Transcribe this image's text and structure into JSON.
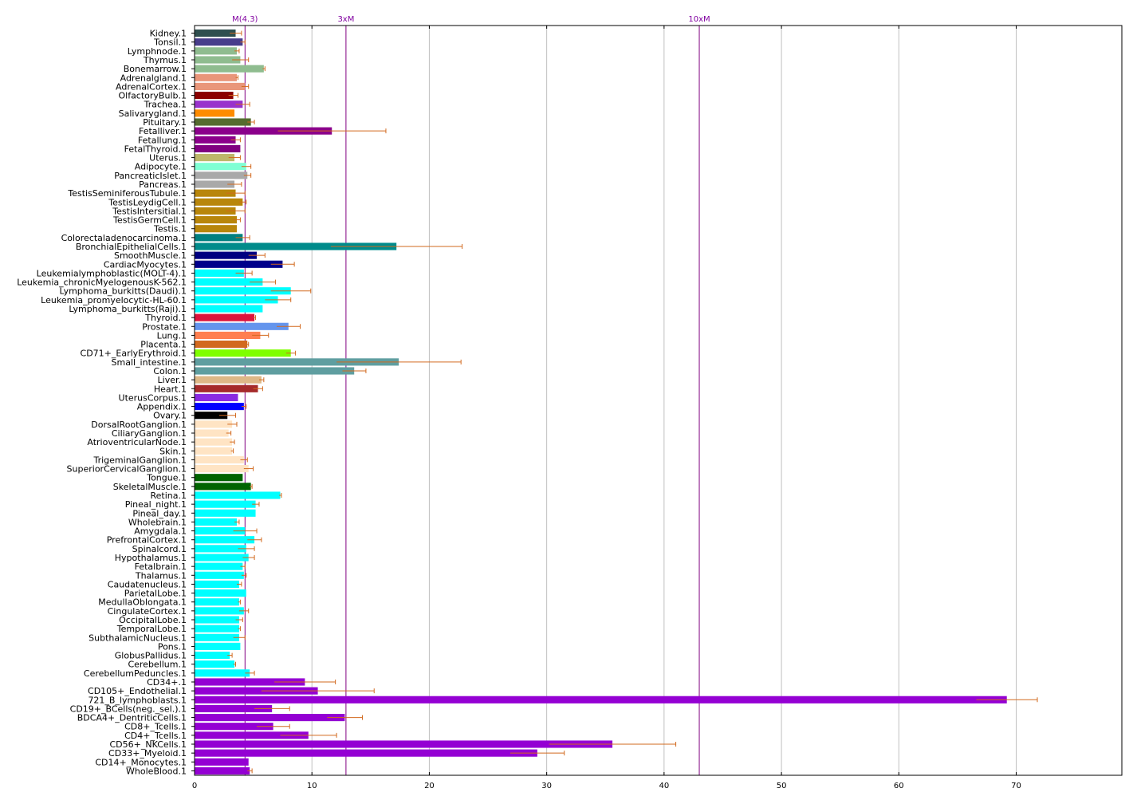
{
  "chart_data": {
    "type": "bar",
    "orientation": "horizontal",
    "title": "",
    "xlabel": "",
    "ylabel": "",
    "xlim": [
      0,
      79
    ],
    "xticks": [
      0,
      10,
      20,
      30,
      40,
      50,
      60,
      70
    ],
    "grid": {
      "vertical": true,
      "horizontal": false
    },
    "legend": "none",
    "error_bar_color": "#d2691e",
    "reference_lines": [
      {
        "label": "M(4.3)",
        "value": 4.3,
        "color": "#800080"
      },
      {
        "label": "3xM",
        "value": 12.9,
        "color": "#800080"
      },
      {
        "label": "10xM",
        "value": 43.0,
        "color": "#800080"
      }
    ],
    "bars": [
      {
        "label": "Kidney.1",
        "value": 3.5,
        "error": 0.5,
        "color": "#2f4f4f"
      },
      {
        "label": "Tonsil.1",
        "value": 4.1,
        "error": 0.2,
        "color": "#483d8b"
      },
      {
        "label": "Lymphnode.1",
        "value": 3.6,
        "error": 0.2,
        "color": "#8fbc8f"
      },
      {
        "label": "Thymus.1",
        "value": 3.9,
        "error": 0.7,
        "color": "#8fbc8f"
      },
      {
        "label": "Bonemarrow.1",
        "value": 5.9,
        "error": 0.1,
        "color": "#8fbc8f"
      },
      {
        "label": "Adrenalgland.1",
        "value": 3.6,
        "error": 0.1,
        "color": "#e9967a"
      },
      {
        "label": "AdrenalCortex.1",
        "value": 4.3,
        "error": 0.3,
        "color": "#e9967a"
      },
      {
        "label": "OlfactoryBulb.1",
        "value": 3.3,
        "error": 0.4,
        "color": "#8b0000"
      },
      {
        "label": "Trachea.1",
        "value": 4.1,
        "error": 0.6,
        "color": "#9932cc"
      },
      {
        "label": "Salivarygland.1",
        "value": 3.4,
        "error": 0.0,
        "color": "#ff8c00"
      },
      {
        "label": "Pituitary.1",
        "value": 4.8,
        "error": 0.3,
        "color": "#556b2f"
      },
      {
        "label": "Fetalliver.1",
        "value": 11.7,
        "error": 4.6,
        "color": "#8b008b"
      },
      {
        "label": "Fetallung.1",
        "value": 3.5,
        "error": 0.4,
        "color": "#8b008b"
      },
      {
        "label": "FetalThyroid.1",
        "value": 3.9,
        "error": 0.0,
        "color": "#800080"
      },
      {
        "label": "Uterus.1",
        "value": 3.4,
        "error": 0.5,
        "color": "#bdb76b"
      },
      {
        "label": "Adipocyte.1",
        "value": 4.4,
        "error": 0.4,
        "color": "#7fffd4"
      },
      {
        "label": "PancreaticIslet.1",
        "value": 4.5,
        "error": 0.3,
        "color": "#a9a9a9"
      },
      {
        "label": "Pancreas.1",
        "value": 3.4,
        "error": 0.6,
        "color": "#a9a9a9"
      },
      {
        "label": "TestisSeminiferousTubule.1",
        "value": 3.5,
        "error": 0.8,
        "color": "#b8860b"
      },
      {
        "label": "TestisLeydigCell.1",
        "value": 4.1,
        "error": 0.3,
        "color": "#b8860b"
      },
      {
        "label": "TestisIntersitial.1",
        "value": 3.5,
        "error": 0.8,
        "color": "#b8860b"
      },
      {
        "label": "TestisGermCell.1",
        "value": 3.6,
        "error": 0.3,
        "color": "#b8860b"
      },
      {
        "label": "Testis.1",
        "value": 3.6,
        "error": 0.0,
        "color": "#b8860b"
      },
      {
        "label": "Colorectaladenocarcinoma.1",
        "value": 4.1,
        "error": 0.6,
        "color": "#008080"
      },
      {
        "label": "BronchialEpithelialCells.1",
        "value": 17.2,
        "error": 5.6,
        "color": "#008b8b"
      },
      {
        "label": "SmoothMuscle.1",
        "value": 5.3,
        "error": 0.7,
        "color": "#000080"
      },
      {
        "label": "CardiacMyocytes.1",
        "value": 7.5,
        "error": 1.0,
        "color": "#00008b"
      },
      {
        "label": "Leukemialymphoblastic(MOLT-4).1",
        "value": 4.2,
        "error": 0.7,
        "color": "#00ffff"
      },
      {
        "label": "Leukemia_chronicMyelogenousK-562.1",
        "value": 5.8,
        "error": 1.1,
        "color": "#00ffff"
      },
      {
        "label": "Lymphoma_burkitts(Daudi).1",
        "value": 8.2,
        "error": 1.7,
        "color": "#00ffff"
      },
      {
        "label": "Leukemia_promyelocytic-HL-60.1",
        "value": 7.1,
        "error": 1.1,
        "color": "#00ffff"
      },
      {
        "label": "Lymphoma_burkitts(Raji).1",
        "value": 5.8,
        "error": 0.0,
        "color": "#00ffff"
      },
      {
        "label": "Thyroid.1",
        "value": 5.1,
        "error": 0.1,
        "color": "#dc143c"
      },
      {
        "label": "Prostate.1",
        "value": 8.0,
        "error": 1.0,
        "color": "#6495ed"
      },
      {
        "label": "Lung.1",
        "value": 5.6,
        "error": 0.7,
        "color": "#ff7f50"
      },
      {
        "label": "Placenta.1",
        "value": 4.5,
        "error": 0.1,
        "color": "#d2691e"
      },
      {
        "label": "CD71+_EarlyErythroid.1",
        "value": 8.2,
        "error": 0.4,
        "color": "#7fff00"
      },
      {
        "label": "Small_intestine.1",
        "value": 17.4,
        "error": 5.3,
        "color": "#5f9ea0"
      },
      {
        "label": "Colon.1",
        "value": 13.6,
        "error": 1.0,
        "color": "#5f9ea0"
      },
      {
        "label": "Liver.1",
        "value": 5.7,
        "error": 0.2,
        "color": "#deb887"
      },
      {
        "label": "Heart.1",
        "value": 5.4,
        "error": 0.4,
        "color": "#a52a2a"
      },
      {
        "label": "UterusCorpus.1",
        "value": 3.7,
        "error": 0.0,
        "color": "#8a2be2"
      },
      {
        "label": "Appendix.1",
        "value": 4.2,
        "error": 0.2,
        "color": "#0000ff"
      },
      {
        "label": "Ovary.1",
        "value": 2.8,
        "error": 0.7,
        "color": "#000000"
      },
      {
        "label": "DorsalRootGanglion.1",
        "value": 3.2,
        "error": 0.4,
        "color": "#ffe4c4"
      },
      {
        "label": "CiliaryGanglion.1",
        "value": 2.9,
        "error": 0.2,
        "color": "#ffe4c4"
      },
      {
        "label": "AtrioventricularNode.1",
        "value": 3.2,
        "error": 0.2,
        "color": "#ffe4c4"
      },
      {
        "label": "Skin.1",
        "value": 3.2,
        "error": 0.1,
        "color": "#ffe4c4"
      },
      {
        "label": "TrigeminalGanglion.1",
        "value": 4.2,
        "error": 0.3,
        "color": "#ffe4c4"
      },
      {
        "label": "SuperiorCervicalGanglion.1",
        "value": 4.6,
        "error": 0.4,
        "color": "#ffe4c4"
      },
      {
        "label": "Tongue.1",
        "value": 4.1,
        "error": 0.0,
        "color": "#006400"
      },
      {
        "label": "SkeletalMuscle.1",
        "value": 4.8,
        "error": 0.1,
        "color": "#006400"
      },
      {
        "label": "Retina.1",
        "value": 7.3,
        "error": 0.1,
        "color": "#00ffff"
      },
      {
        "label": "Pineal_night.1",
        "value": 5.2,
        "error": 0.3,
        "color": "#00ffff"
      },
      {
        "label": "Pineal_day.1",
        "value": 5.2,
        "error": 0.0,
        "color": "#00ffff"
      },
      {
        "label": "Wholebrain.1",
        "value": 3.6,
        "error": 0.2,
        "color": "#00ffff"
      },
      {
        "label": "Amygdala.1",
        "value": 4.3,
        "error": 1.0,
        "color": "#00ffff"
      },
      {
        "label": "PrefrontalCortex.1",
        "value": 5.1,
        "error": 0.6,
        "color": "#00ffff"
      },
      {
        "label": "Spinalcord.1",
        "value": 4.4,
        "error": 0.7,
        "color": "#00ffff"
      },
      {
        "label": "Hypothalamus.1",
        "value": 4.6,
        "error": 0.5,
        "color": "#00ffff"
      },
      {
        "label": "Fetalbrain.1",
        "value": 4.1,
        "error": 0.2,
        "color": "#00ffff"
      },
      {
        "label": "Thalamus.1",
        "value": 4.2,
        "error": 0.2,
        "color": "#00ffff"
      },
      {
        "label": "Caudatenucleus.1",
        "value": 3.8,
        "error": 0.2,
        "color": "#00ffff"
      },
      {
        "label": "ParietalLobe.1",
        "value": 4.4,
        "error": 0.0,
        "color": "#00ffff"
      },
      {
        "label": "MedullaOblongata.1",
        "value": 3.8,
        "error": 0.1,
        "color": "#00ffff"
      },
      {
        "label": "CingulateCortex.1",
        "value": 4.2,
        "error": 0.4,
        "color": "#00ffff"
      },
      {
        "label": "OccipitalLobe.1",
        "value": 3.8,
        "error": 0.3,
        "color": "#00ffff"
      },
      {
        "label": "TemporalLobe.1",
        "value": 3.8,
        "error": 0.1,
        "color": "#00ffff"
      },
      {
        "label": "SubthalamicNucleus.1",
        "value": 3.8,
        "error": 0.5,
        "color": "#00ffff"
      },
      {
        "label": "Pons.1",
        "value": 3.9,
        "error": 0.0,
        "color": "#00ffff"
      },
      {
        "label": "GlobusPallidus.1",
        "value": 3.0,
        "error": 0.2,
        "color": "#00ffff"
      },
      {
        "label": "Cerebellum.1",
        "value": 3.4,
        "error": 0.1,
        "color": "#00ffff"
      },
      {
        "label": "CerebellumPeduncles.1",
        "value": 4.7,
        "error": 0.4,
        "color": "#00ffff"
      },
      {
        "label": "CD34+.1",
        "value": 9.4,
        "error": 2.6,
        "color": "#9400d3"
      },
      {
        "label": "CD105+_Endothelial.1",
        "value": 10.5,
        "error": 4.8,
        "color": "#9400d3"
      },
      {
        "label": "721_B_lymphoblasts.1",
        "value": 69.2,
        "error": 2.6,
        "color": "#9400d3"
      },
      {
        "label": "CD19+_BCells(neg._sel.).1",
        "value": 6.6,
        "error": 1.5,
        "color": "#9400d3"
      },
      {
        "label": "BDCA4+_DentriticCells.1",
        "value": 12.8,
        "error": 1.5,
        "color": "#9400d3"
      },
      {
        "label": "CD8+_Tcells.1",
        "value": 6.7,
        "error": 1.4,
        "color": "#9400d3"
      },
      {
        "label": "CD4+_Tcells.1",
        "value": 9.7,
        "error": 2.4,
        "color": "#9400d3"
      },
      {
        "label": "CD56+_NKCells.1",
        "value": 35.6,
        "error": 5.4,
        "color": "#9400d3"
      },
      {
        "label": "CD33+_Myeloid.1",
        "value": 29.2,
        "error": 2.3,
        "color": "#9400d3"
      },
      {
        "label": "CD14+_Monocytes.1",
        "value": 4.6,
        "error": 0.0,
        "color": "#9400d3"
      },
      {
        "label": "WholeBlood.1",
        "value": 4.7,
        "error": 0.2,
        "color": "#9400d3"
      }
    ]
  }
}
